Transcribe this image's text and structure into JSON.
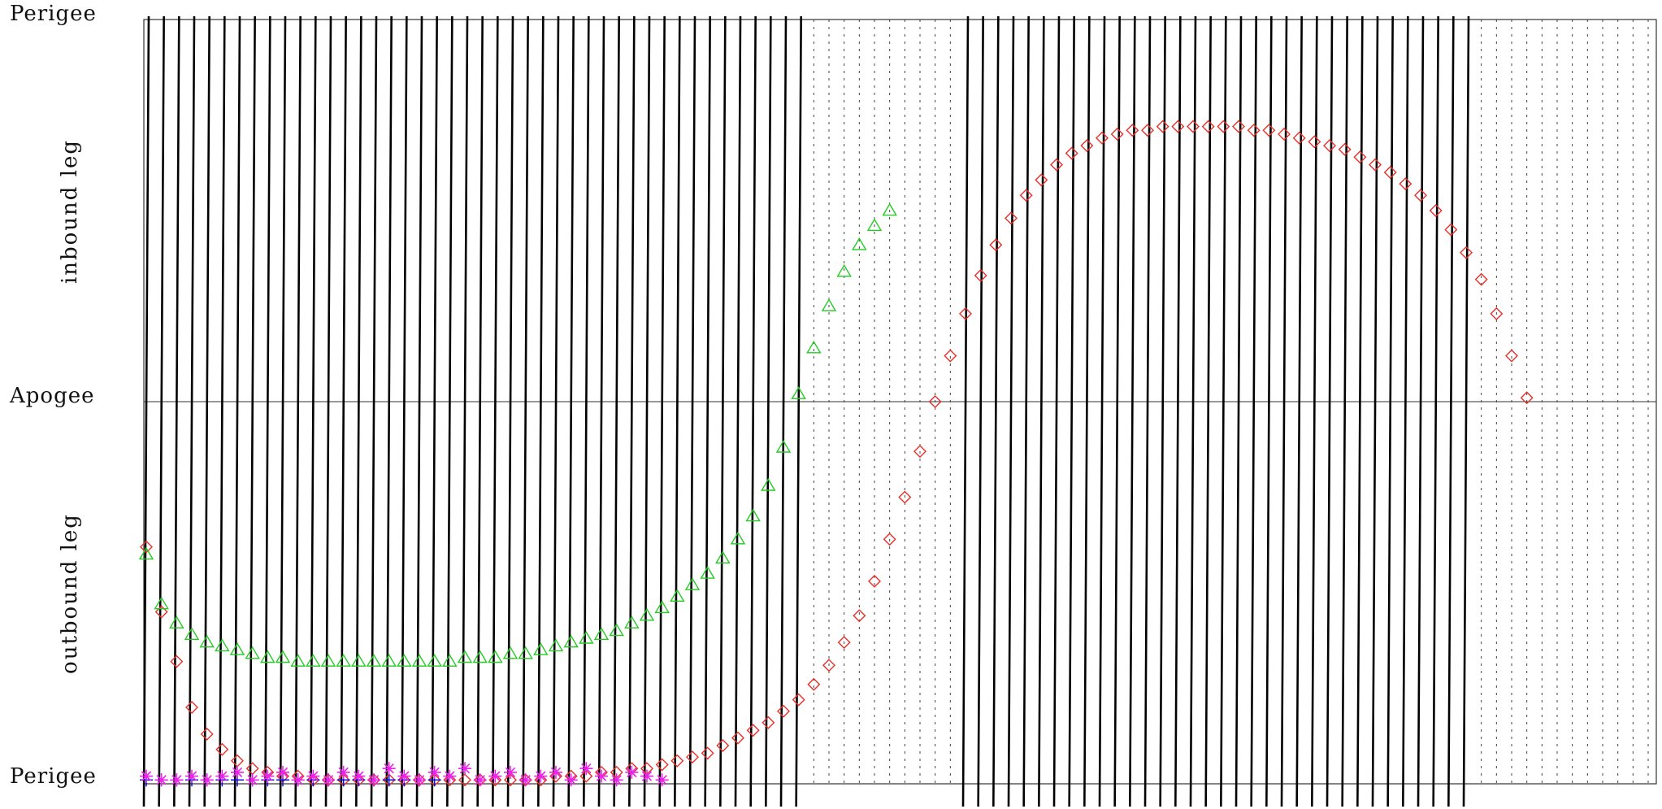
{
  "chart_data": {
    "type": "scatter",
    "title": "",
    "tick_labels": {
      "top": "Perigee",
      "middle": "Apogee",
      "bottom": "Perigee"
    },
    "band_labels": {
      "upper": "inbound leg",
      "lower": "outbound leg"
    },
    "grid": true,
    "colors": {
      "lines": "#000000",
      "dotted": "#444444",
      "diamond": "#e8302a",
      "triangle": "#22cc22",
      "plus": "#1010dd",
      "star": "#ee22ee",
      "axis": "#333333"
    },
    "x_range": [
      0,
      99
    ],
    "y_range": [
      -1,
      1
    ],
    "solid_track_ranges": [
      [
        0,
        43
      ],
      [
        54,
        87
      ]
    ],
    "dotted_track_ranges": [
      [
        44,
        53
      ],
      [
        88,
        99
      ]
    ],
    "series": [
      {
        "marker": "diamond",
        "x": [
          0,
          1,
          2,
          3,
          4,
          5,
          6,
          7,
          8,
          9,
          10,
          11,
          12,
          13,
          14,
          15,
          16,
          17,
          18,
          19,
          20,
          21,
          22,
          23,
          24,
          25,
          26,
          27,
          28,
          29,
          30,
          31,
          32,
          33,
          34,
          35,
          36,
          37,
          38,
          39,
          40,
          41,
          42,
          43,
          44,
          45,
          46,
          47,
          48,
          49,
          50,
          51,
          52,
          53,
          54,
          55,
          56,
          57,
          58,
          59,
          60,
          61,
          62,
          63,
          64,
          65,
          66,
          67,
          68,
          69,
          70,
          71,
          72,
          73,
          74,
          75,
          76,
          77,
          78,
          79,
          80,
          81,
          82,
          83,
          84,
          85,
          86,
          87,
          88,
          89,
          90,
          91
        ],
        "y": [
          -0.38,
          -0.55,
          -0.68,
          -0.8,
          -0.87,
          -0.91,
          -0.94,
          -0.96,
          -0.97,
          -0.98,
          -0.98,
          -0.99,
          -0.99,
          -0.99,
          -0.99,
          -0.99,
          -0.99,
          -0.99,
          -0.99,
          -0.99,
          -0.99,
          -0.99,
          -0.99,
          -0.99,
          -0.99,
          -0.99,
          -0.99,
          -0.98,
          -0.98,
          -0.98,
          -0.97,
          -0.97,
          -0.96,
          -0.96,
          -0.95,
          -0.94,
          -0.93,
          -0.92,
          -0.9,
          -0.88,
          -0.86,
          -0.84,
          -0.81,
          -0.78,
          -0.74,
          -0.69,
          -0.63,
          -0.56,
          -0.47,
          -0.36,
          -0.25,
          -0.13,
          0.0,
          0.12,
          0.23,
          0.33,
          0.41,
          0.48,
          0.54,
          0.58,
          0.62,
          0.65,
          0.67,
          0.69,
          0.7,
          0.71,
          0.71,
          0.72,
          0.72,
          0.72,
          0.72,
          0.72,
          0.72,
          0.71,
          0.71,
          0.7,
          0.69,
          0.68,
          0.67,
          0.66,
          0.64,
          0.62,
          0.6,
          0.57,
          0.54,
          0.5,
          0.45,
          0.39,
          0.32,
          0.23,
          0.12,
          0.01
        ]
      },
      {
        "marker": "triangle",
        "x": [
          0,
          1,
          2,
          3,
          4,
          5,
          6,
          7,
          8,
          9,
          10,
          11,
          12,
          13,
          14,
          15,
          16,
          17,
          18,
          19,
          20,
          21,
          22,
          23,
          24,
          25,
          26,
          27,
          28,
          29,
          30,
          31,
          32,
          33,
          34,
          35,
          36,
          37,
          38,
          39,
          40,
          41,
          42,
          43,
          44,
          45,
          46,
          47,
          48,
          49
        ],
        "y": [
          -0.4,
          -0.53,
          -0.58,
          -0.61,
          -0.63,
          -0.64,
          -0.65,
          -0.66,
          -0.67,
          -0.67,
          -0.68,
          -0.68,
          -0.68,
          -0.68,
          -0.68,
          -0.68,
          -0.68,
          -0.68,
          -0.68,
          -0.68,
          -0.68,
          -0.67,
          -0.67,
          -0.67,
          -0.66,
          -0.66,
          -0.65,
          -0.64,
          -0.63,
          -0.62,
          -0.61,
          -0.6,
          -0.58,
          -0.56,
          -0.54,
          -0.51,
          -0.48,
          -0.45,
          -0.41,
          -0.36,
          -0.3,
          -0.22,
          -0.12,
          0.02,
          0.14,
          0.25,
          0.34,
          0.41,
          0.46,
          0.5
        ]
      },
      {
        "marker": "plus",
        "x": [
          0,
          1,
          2,
          3,
          4,
          5,
          6,
          7,
          8,
          9,
          10,
          11,
          12,
          13,
          14,
          15,
          16,
          17,
          18,
          19
        ],
        "y": [
          -0.99,
          -0.99,
          -0.99,
          -0.99,
          -0.99,
          -0.99,
          -0.99,
          -0.99,
          -0.99,
          -0.99,
          -0.99,
          -0.99,
          -0.99,
          -0.99,
          -0.99,
          -0.99,
          -0.99,
          -0.99,
          -0.99,
          -0.99
        ]
      },
      {
        "marker": "star",
        "x": [
          0,
          1,
          2,
          3,
          4,
          5,
          6,
          7,
          8,
          9,
          10,
          11,
          12,
          13,
          14,
          15,
          16,
          17,
          18,
          19,
          20,
          21,
          22,
          23,
          24,
          25,
          26,
          27,
          28,
          29,
          30,
          31,
          32,
          33,
          34
        ],
        "y": [
          -0.98,
          -0.99,
          -0.99,
          -0.98,
          -0.99,
          -0.98,
          -0.97,
          -0.99,
          -0.98,
          -0.97,
          -0.99,
          -0.98,
          -0.99,
          -0.97,
          -0.98,
          -0.99,
          -0.96,
          -0.98,
          -0.99,
          -0.97,
          -0.98,
          -0.96,
          -0.99,
          -0.98,
          -0.97,
          -0.99,
          -0.98,
          -0.97,
          -0.99,
          -0.96,
          -0.98,
          -0.99,
          -0.97,
          -0.98,
          -0.99
        ]
      }
    ]
  }
}
